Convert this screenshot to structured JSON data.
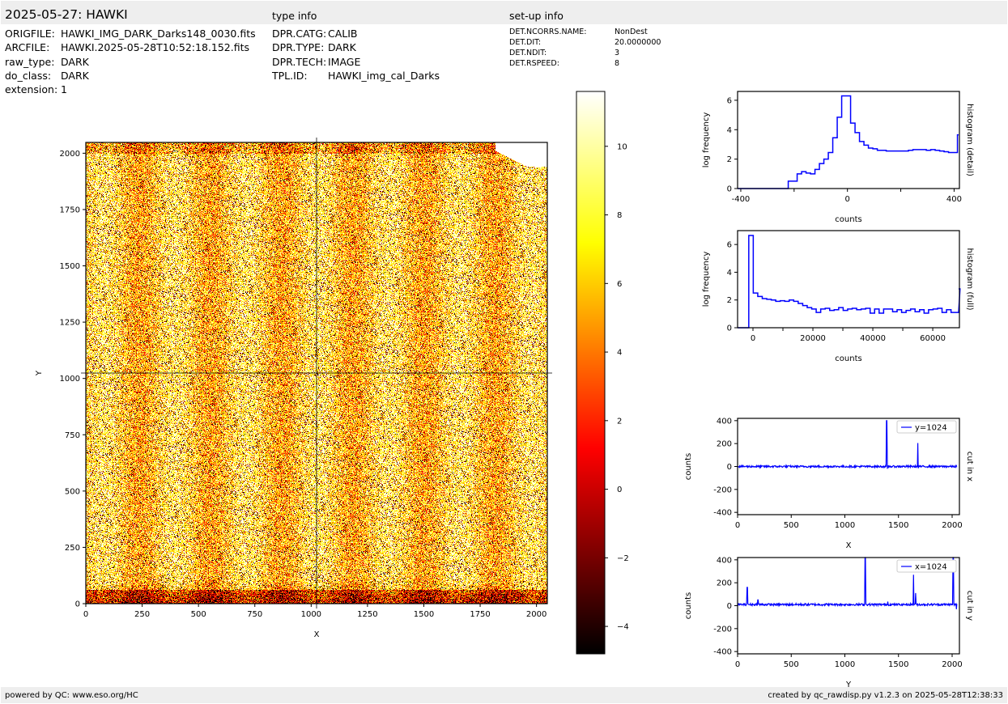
{
  "header": {
    "title": "2025-05-27: HAWKI",
    "type_info_label": "type info",
    "setup_info_label": "set-up info"
  },
  "file_info": [
    {
      "key": "ORIGFILE:",
      "value": "HAWKI_IMG_DARK_Darks148_0030.fits"
    },
    {
      "key": "ARCFILE:",
      "value": "HAWKI.2025-05-28T10:52:18.152.fits"
    },
    {
      "key": "raw_type:",
      "value": "DARK"
    },
    {
      "key": "do_class:",
      "value": "DARK"
    },
    {
      "key": "extension:",
      "value": "1"
    }
  ],
  "type_info": [
    {
      "key": "DPR.CATG:",
      "value": "CALIB"
    },
    {
      "key": "DPR.TYPE:",
      "value": "DARK"
    },
    {
      "key": "DPR.TECH:",
      "value": "IMAGE"
    },
    {
      "key": "TPL.ID:",
      "value": "HAWKI_img_cal_Darks"
    }
  ],
  "setup_info": [
    {
      "key": "DET.NCORRS.NAME:",
      "value": "NonDest"
    },
    {
      "key": "DET.DIT:",
      "value": "20.0000000"
    },
    {
      "key": "DET.NDIT:",
      "value": "3"
    },
    {
      "key": "DET.RSPEED:",
      "value": "8"
    }
  ],
  "footer": {
    "left": "powered by QC: www.eso.org/HC",
    "right": "created by qc_rawdisp.py v1.2.3 on 2025-05-28T12:38:33"
  },
  "colors": {
    "line": "#0000ff",
    "header_bg": "#eeeeee"
  },
  "chart_data": [
    {
      "id": "image",
      "type": "heatmap",
      "xlabel": "X",
      "ylabel": "Y",
      "xlim": [
        0,
        2048
      ],
      "ylim": [
        0,
        2048
      ],
      "xticks": [
        0,
        250,
        500,
        750,
        1000,
        1250,
        1500,
        1750,
        2000
      ],
      "yticks": [
        0,
        250,
        500,
        750,
        1000,
        1250,
        1500,
        1750,
        2000
      ],
      "crosshair": {
        "x": 1024,
        "y": 1024
      },
      "colormap": "hot",
      "colorbar": {
        "range": [
          -4.8,
          11.6
        ],
        "ticks": [
          -4,
          -2,
          0,
          2,
          4,
          6,
          8,
          10
        ]
      }
    },
    {
      "id": "hist-detail",
      "type": "bar",
      "xlabel": "counts",
      "ylabel": "log frequency",
      "right_label": "histogram (detail)",
      "xlim": [
        -412,
        420
      ],
      "ylim": [
        0,
        6.6
      ],
      "xticks": [
        -400,
        -200,
        0,
        200,
        400
      ],
      "xticklabels": [
        "-400",
        "",
        "0",
        "",
        "400"
      ],
      "yticks": [
        0,
        2,
        4,
        6
      ],
      "bin_start": -222,
      "bin_width": 16.7,
      "values": [
        0.5,
        0.5,
        1.0,
        1.15,
        1.05,
        1.0,
        1.3,
        1.7,
        2.0,
        2.45,
        3.45,
        4.85,
        6.3,
        6.3,
        4.45,
        3.8,
        3.2,
        2.95,
        2.75,
        2.7,
        2.6,
        2.6,
        2.55,
        2.55,
        2.55,
        2.55,
        2.55,
        2.6,
        2.65,
        2.65,
        2.65,
        2.6,
        2.65,
        2.6,
        2.55,
        2.5,
        2.45,
        2.45,
        3.65
      ]
    },
    {
      "id": "hist-full",
      "type": "bar",
      "xlabel": "counts",
      "ylabel": "log frequency",
      "right_label": "histogram (full)",
      "xlim": [
        -5135,
        68900
      ],
      "ylim": [
        0,
        7.0
      ],
      "xticks": [
        0,
        10000,
        20000,
        30000,
        40000,
        50000,
        60000
      ],
      "xticklabels": [
        "0",
        "",
        "20000",
        "",
        "40000",
        "",
        "60000"
      ],
      "yticks": [
        0,
        2,
        4,
        6
      ],
      "bin_start": -1400,
      "bin_width": 1500,
      "values": [
        6.65,
        2.5,
        2.25,
        2.1,
        2.05,
        2.0,
        1.9,
        1.95,
        1.9,
        2.0,
        1.9,
        1.75,
        1.6,
        1.45,
        1.35,
        1.1,
        1.35,
        1.4,
        1.25,
        1.3,
        1.45,
        1.25,
        1.35,
        1.4,
        1.3,
        1.35,
        1.4,
        1.05,
        1.35,
        1.05,
        1.35,
        1.35,
        1.15,
        1.3,
        1.1,
        1.25,
        1.35,
        1.15,
        1.3,
        1.05,
        1.3,
        1.35,
        1.4,
        1.1,
        1.3,
        1.1,
        1.1,
        2.8
      ]
    },
    {
      "id": "cut-x",
      "type": "line",
      "xlabel": "X",
      "ylabel": "counts",
      "right_label": "cut in x",
      "legend": "y=1024",
      "legend_position": "top-right",
      "xlim": [
        0,
        2068
      ],
      "ylim": [
        -420,
        420
      ],
      "xticks": [
        0,
        500,
        1000,
        1500,
        2000
      ],
      "yticks": [
        -400,
        -200,
        0,
        200,
        400
      ],
      "baseline": 0,
      "noise": 8,
      "spikes": [
        [
          1390,
          400
        ],
        [
          1395,
          -20
        ],
        [
          1680,
          205
        ],
        [
          1683,
          -15
        ]
      ]
    },
    {
      "id": "cut-y",
      "type": "line",
      "xlabel": "Y",
      "ylabel": "counts",
      "right_label": "cut in y",
      "legend": "x=1024",
      "legend_position": "top-right",
      "xlim": [
        0,
        2068
      ],
      "ylim": [
        -420,
        420
      ],
      "xticks": [
        0,
        500,
        1000,
        1500,
        2000
      ],
      "yticks": [
        -400,
        -200,
        0,
        200,
        400
      ],
      "baseline": 10,
      "noise": 9,
      "spikes": [
        [
          90,
          160
        ],
        [
          190,
          50
        ],
        [
          1190,
          420
        ],
        [
          1400,
          35
        ],
        [
          1640,
          270
        ],
        [
          1660,
          110
        ],
        [
          2010,
          420
        ],
        [
          2040,
          -30
        ]
      ]
    }
  ]
}
